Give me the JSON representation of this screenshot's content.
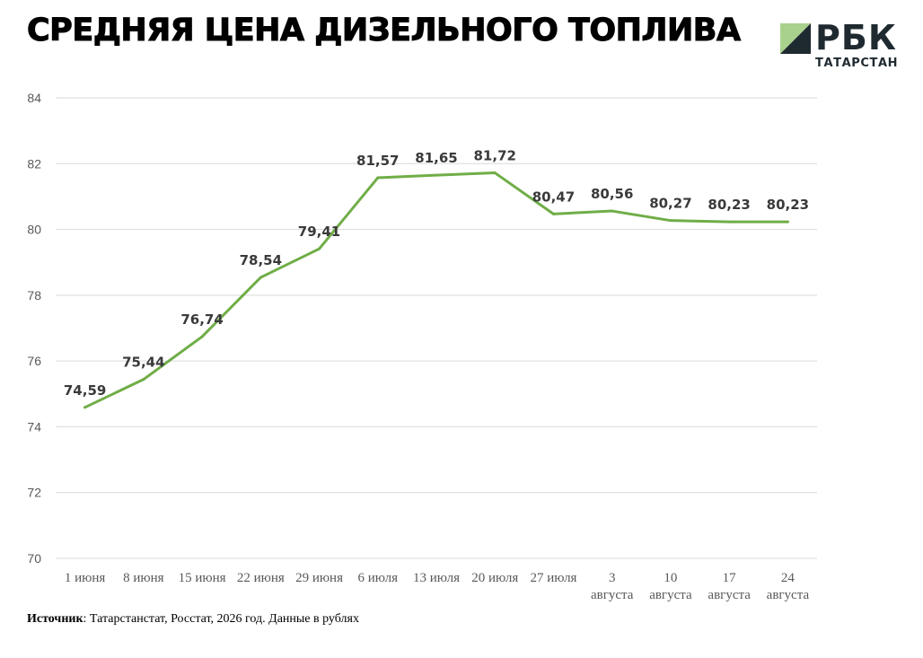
{
  "header": {
    "title": "СРЕДНЯЯ ЦЕНА ДИЗЕЛЬНОГО ТОПЛИВА",
    "logo_text": "РБК",
    "logo_sub": "ТАТАРСТАН"
  },
  "footer": {
    "source_label": "Источник",
    "source_text": ": Татарстанстат, Росстат, 2026 год. Данные в рублях"
  },
  "colors": {
    "line": "#70ad47",
    "grid": "#d9d9d9",
    "logo_green": "#a9d18e",
    "logo_dark": "#1f2a30"
  },
  "chart_data": {
    "type": "line",
    "categories": [
      "1 июня",
      "8 июня",
      "15 июня",
      "22 июня",
      "29 июня",
      "6 июля",
      "13 июля",
      "20 июля",
      "27 июля",
      "3 августа",
      "10 августа",
      "17 августа",
      "24 августа"
    ],
    "values": [
      74.59,
      75.44,
      76.74,
      78.54,
      79.41,
      81.57,
      81.65,
      81.72,
      80.47,
      80.56,
      80.27,
      80.23,
      80.23
    ],
    "data_labels": [
      "74,59",
      "75,44",
      "76,74",
      "78,54",
      "79,41",
      "81,57",
      "81,65",
      "81,72",
      "80,47",
      "80,56",
      "80,27",
      "80,23",
      "80,23"
    ],
    "y_ticks": [
      "70",
      "72",
      "74",
      "76",
      "78",
      "80",
      "82",
      "84"
    ],
    "ylim": [
      70,
      84
    ],
    "grid": true,
    "title": "СРЕДНЯЯ ЦЕНА ДИЗЕЛЬНОГО ТОПЛИВА",
    "xlabel": "",
    "ylabel": ""
  }
}
